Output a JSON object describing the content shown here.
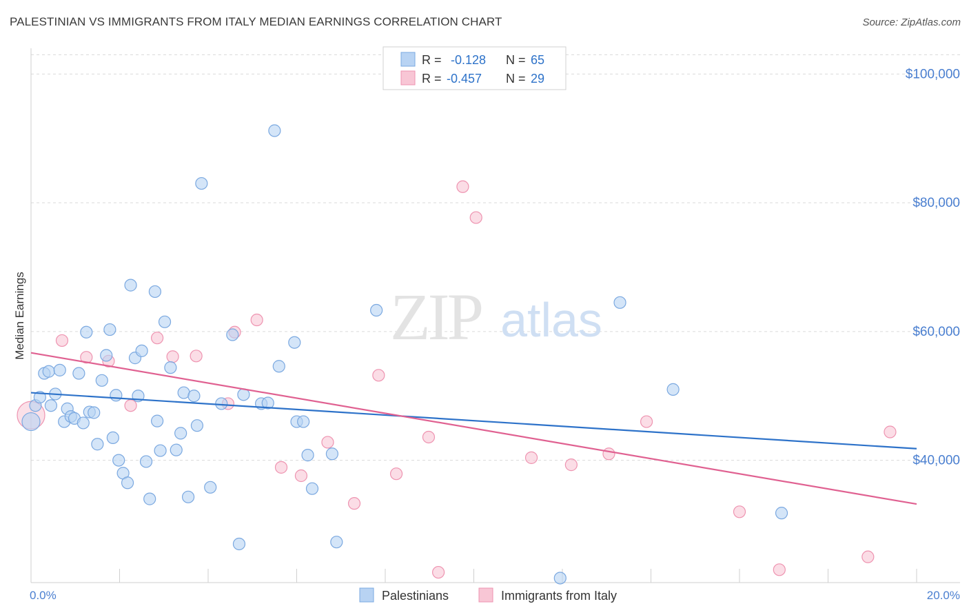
{
  "title": "PALESTINIAN VS IMMIGRANTS FROM ITALY MEDIAN EARNINGS CORRELATION CHART",
  "source": "Source: ZipAtlas.com",
  "watermark": {
    "zip": "ZIP",
    "atlas": "atlas"
  },
  "colors": {
    "blue_fill": "#b8d3f3",
    "blue_stroke": "#7aa8e0",
    "blue_line": "#2d72c9",
    "pink_fill": "#f8c6d5",
    "pink_stroke": "#ee93b0",
    "pink_line": "#e06191",
    "tick_label": "#4a7fd0",
    "grid": "#d9d9d9"
  },
  "legend": {
    "rows": [
      {
        "r_label": "R =",
        "r_value": "-0.128",
        "n_label": "N =",
        "n_value": "65"
      },
      {
        "r_label": "R =",
        "r_value": "-0.457",
        "n_label": "N =",
        "n_value": "29"
      }
    ]
  },
  "bottom_legend": {
    "series1": "Palestinians",
    "series2": "Immigrants from Italy"
  },
  "chart_data": {
    "type": "scatter",
    "title": "PALESTINIAN VS IMMIGRANTS FROM ITALY MEDIAN EARNINGS CORRELATION CHART",
    "xlabel": "",
    "ylabel": "Median Earnings",
    "xlim": [
      0,
      20
    ],
    "ylim": [
      21000,
      104000
    ],
    "x_tick_labels": [
      "0.0%",
      "20.0%"
    ],
    "y_ticks": [
      40000,
      60000,
      80000,
      100000
    ],
    "y_tick_labels": [
      "$40,000",
      "$60,000",
      "$80,000",
      "$100,000"
    ],
    "grid": true,
    "series": [
      {
        "name": "Palestinians",
        "r": -0.128,
        "n": 65,
        "trend": [
          [
            0,
            50500
          ],
          [
            20,
            41800
          ]
        ],
        "points": [
          [
            0.0,
            46000
          ],
          [
            0.1,
            48500
          ],
          [
            0.2,
            49800
          ],
          [
            0.3,
            53500
          ],
          [
            0.4,
            53800
          ],
          [
            0.45,
            48500
          ],
          [
            0.55,
            50300
          ],
          [
            0.65,
            54000
          ],
          [
            0.75,
            46000
          ],
          [
            0.82,
            48000
          ],
          [
            0.9,
            46800
          ],
          [
            0.98,
            46500
          ],
          [
            1.08,
            53500
          ],
          [
            1.18,
            45800
          ],
          [
            1.25,
            59900
          ],
          [
            1.32,
            47500
          ],
          [
            1.42,
            47400
          ],
          [
            1.5,
            42500
          ],
          [
            1.6,
            52400
          ],
          [
            1.7,
            56300
          ],
          [
            1.78,
            60300
          ],
          [
            1.85,
            43500
          ],
          [
            1.92,
            50100
          ],
          [
            1.98,
            40000
          ],
          [
            2.08,
            38000
          ],
          [
            2.18,
            36500
          ],
          [
            2.25,
            67200
          ],
          [
            2.35,
            55900
          ],
          [
            2.42,
            50000
          ],
          [
            2.5,
            57000
          ],
          [
            2.6,
            39800
          ],
          [
            2.68,
            34000
          ],
          [
            2.8,
            66200
          ],
          [
            2.85,
            46100
          ],
          [
            2.92,
            41500
          ],
          [
            3.02,
            61500
          ],
          [
            3.15,
            54400
          ],
          [
            3.28,
            41600
          ],
          [
            3.38,
            44200
          ],
          [
            3.45,
            50500
          ],
          [
            3.55,
            34300
          ],
          [
            3.68,
            50000
          ],
          [
            3.75,
            45400
          ],
          [
            3.85,
            83000
          ],
          [
            4.05,
            35800
          ],
          [
            4.3,
            48800
          ],
          [
            4.55,
            59500
          ],
          [
            4.7,
            27000
          ],
          [
            4.8,
            50200
          ],
          [
            5.2,
            48800
          ],
          [
            5.35,
            48900
          ],
          [
            5.5,
            91200
          ],
          [
            5.6,
            54600
          ],
          [
            5.95,
            58300
          ],
          [
            6.0,
            46000
          ],
          [
            6.15,
            46000
          ],
          [
            6.25,
            40800
          ],
          [
            6.35,
            35600
          ],
          [
            6.8,
            41000
          ],
          [
            6.9,
            27300
          ],
          [
            7.8,
            63300
          ],
          [
            13.3,
            64500
          ],
          [
            14.5,
            51000
          ],
          [
            16.95,
            31800
          ],
          [
            11.95,
            21700
          ]
        ]
      },
      {
        "name": "Immigrants from Italy",
        "r": -0.457,
        "n": 29,
        "trend": [
          [
            0,
            56700
          ],
          [
            20,
            33200
          ]
        ],
        "points": [
          [
            0.0,
            47000
          ],
          [
            0.7,
            58600
          ],
          [
            1.25,
            56000
          ],
          [
            1.75,
            55400
          ],
          [
            2.25,
            48500
          ],
          [
            2.85,
            59000
          ],
          [
            3.2,
            56100
          ],
          [
            3.73,
            56200
          ],
          [
            4.45,
            48800
          ],
          [
            4.6,
            59900
          ],
          [
            5.1,
            61800
          ],
          [
            5.65,
            38900
          ],
          [
            6.1,
            37600
          ],
          [
            6.7,
            42800
          ],
          [
            7.3,
            33300
          ],
          [
            7.85,
            53200
          ],
          [
            8.25,
            37900
          ],
          [
            8.98,
            43600
          ],
          [
            9.2,
            22600
          ],
          [
            9.75,
            82500
          ],
          [
            10.05,
            77700
          ],
          [
            11.3,
            40400
          ],
          [
            12.2,
            39300
          ],
          [
            13.05,
            41000
          ],
          [
            13.9,
            46000
          ],
          [
            16.0,
            32000
          ],
          [
            16.9,
            23000
          ],
          [
            18.9,
            25000
          ],
          [
            19.4,
            44400
          ]
        ]
      }
    ]
  }
}
